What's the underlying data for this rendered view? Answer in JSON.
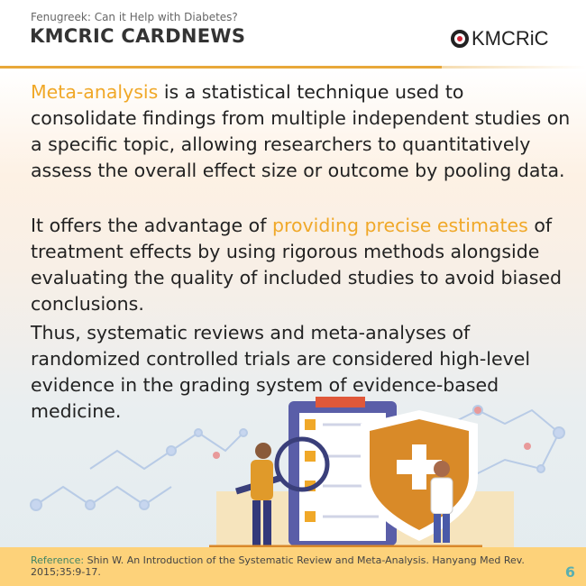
{
  "header": {
    "subtitle": "Fenugreek: Can it Help with Diabetes?",
    "title": "KMCRIC CARDNEWS",
    "logo_text": "KMCRiC"
  },
  "body": {
    "p1_highlight": "Meta-analysis",
    "p1_rest": " is a statistical technique used to consolidate findings from multiple independent studies on a specific topic, allowing researchers to quantitatively assess the overall effect size or outcome by pooling data.",
    "p2_start": "It offers the advantage of ",
    "p2_highlight": "providing precise estimates",
    "p2_rest": " of treatment effects by using rigorous methods alongside evaluating the quality of included studies to avoid biased conclusions.",
    "p3": "Thus, systematic reviews and meta-analyses of randomized controlled trials are considered high-level evidence in the grading system of evidence-based medicine."
  },
  "footer": {
    "reference_label": "Reference:",
    "reference_text": " Shin W. An Introduction of the Systematic Review and Meta-Analysis. Hanyang Med Rev. 2015;35:9-17.",
    "page_number": "6"
  },
  "colors": {
    "accent": "#f0a828",
    "footer_bg": "#fdd27a",
    "page_number": "#5aafb0"
  }
}
